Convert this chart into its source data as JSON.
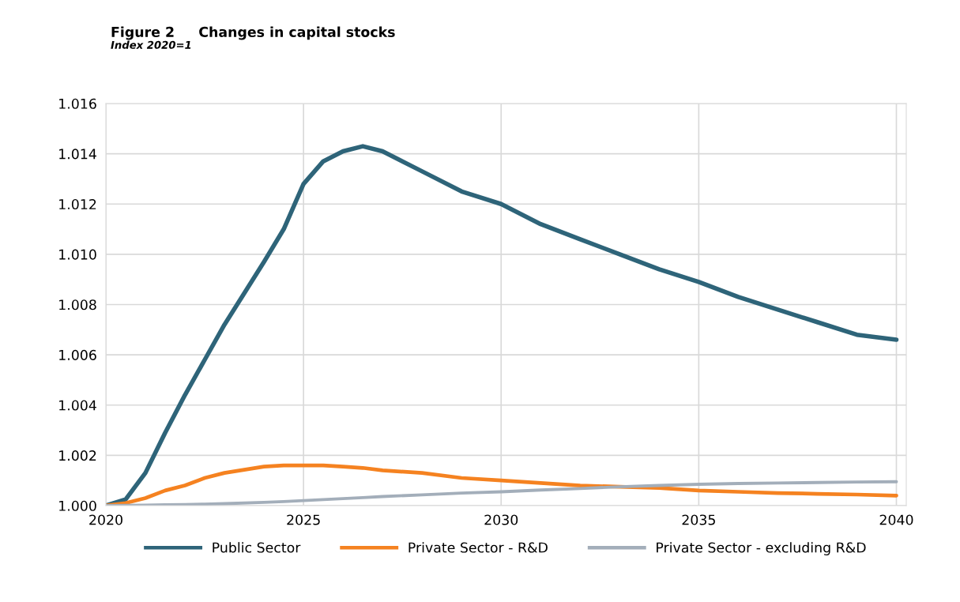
{
  "chart_data": {
    "type": "line",
    "title": "Figure 2     Changes in capital stocks",
    "subtitle": "Index 2020=1",
    "x": [
      2020,
      2020.5,
      2021,
      2021.5,
      2022,
      2022.5,
      2023,
      2024,
      2024.5,
      2025,
      2025.5,
      2026,
      2026.5,
      2027,
      2028,
      2029,
      2030,
      2031,
      2032,
      2033,
      2034,
      2035,
      2036,
      2037,
      2038,
      2039,
      2040
    ],
    "series": [
      {
        "name": "Public Sector",
        "color": "#2e6479",
        "values": [
          1.0,
          1.00025,
          1.0013,
          1.0029,
          1.0044,
          1.0058,
          1.0072,
          1.0097,
          1.011,
          1.0128,
          1.0137,
          1.0141,
          1.0143,
          1.0141,
          1.0133,
          1.0125,
          1.012,
          1.0112,
          1.0106,
          1.01,
          1.0094,
          1.0089,
          1.0083,
          1.0078,
          1.0073,
          1.0068,
          1.0066
        ]
      },
      {
        "name": "Private Sector - R&D",
        "color": "#f58220",
        "values": [
          1.0,
          1.0001,
          1.0003,
          1.0006,
          1.0008,
          1.0011,
          1.0013,
          1.00155,
          1.0016,
          1.0016,
          1.0016,
          1.00155,
          1.0015,
          1.0014,
          1.0013,
          1.0011,
          1.001,
          1.0009,
          1.0008,
          1.00075,
          1.0007,
          1.0006,
          1.00055,
          1.0005,
          1.00047,
          1.00044,
          1.0004
        ]
      },
      {
        "name": "Private Sector - excluding R&D",
        "color": "#a3aeba",
        "values": [
          1.0,
          1.00001,
          1.00002,
          1.00003,
          1.00004,
          1.00006,
          1.00008,
          1.00013,
          1.00016,
          1.0002,
          1.00024,
          1.00028,
          1.00032,
          1.00036,
          1.00043,
          1.0005,
          1.00055,
          1.00062,
          1.00068,
          1.00075,
          1.0008,
          1.00085,
          1.00088,
          1.0009,
          1.00092,
          1.00094,
          1.00095
        ]
      }
    ],
    "xlim": [
      2020,
      2040.25
    ],
    "xticks": [
      2020,
      2025,
      2030,
      2035,
      2040
    ],
    "ylim": [
      1.0,
      1.016
    ],
    "yticks": [
      {
        "value": 1.0,
        "label": "1.000"
      },
      {
        "value": 1.002,
        "label": "1.002"
      },
      {
        "value": 1.004,
        "label": "1.004"
      },
      {
        "value": 1.006,
        "label": "1.006"
      },
      {
        "value": 1.008,
        "label": "1.008"
      },
      {
        "value": 1.01,
        "label": "1.010"
      },
      {
        "value": 1.012,
        "label": "1.012"
      },
      {
        "value": 1.014,
        "label": "1.014"
      },
      {
        "value": 1.016,
        "label": "1.016"
      }
    ],
    "grid": true,
    "legend": "bottom",
    "marker": "none",
    "line_style": "solid"
  }
}
